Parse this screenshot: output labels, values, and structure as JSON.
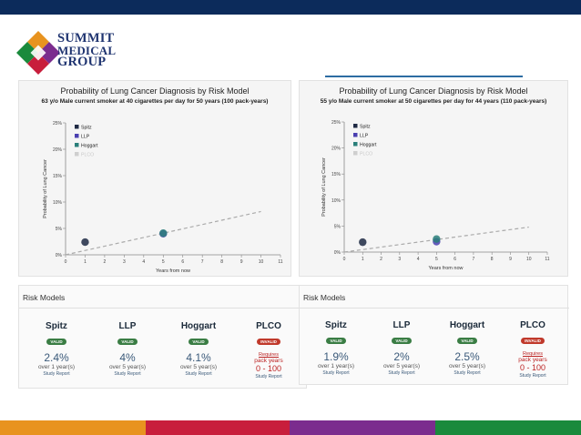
{
  "colors": {
    "top_bar": "#0c2b5b",
    "bottom_bar": [
      "#e8931f",
      "#c81e3c",
      "#7b2c8e",
      "#1a8a3c"
    ],
    "spitz": "#1f2a44",
    "llp": "#4a3fb0",
    "hoggart": "#2a7f7a",
    "plco": "#cfcfcf",
    "valid": "#3a7d44",
    "invalid": "#c0392b"
  },
  "logo": {
    "line1": "SUMMIT",
    "line2": "MEDICAL",
    "line3": "GROUP"
  },
  "chart_data": [
    {
      "type": "line",
      "title": "Probability of Lung Cancer Diagnosis by Risk Model",
      "subtitle": "63 y/o Male current smoker at 40 cigarettes per day for 50 years (100 pack-years)",
      "xlabel": "Years from now",
      "ylabel": "Probability of Lung Cancer",
      "xlim": [
        0,
        11
      ],
      "ylim": [
        0,
        25
      ],
      "xticks": [
        "0",
        "1",
        "2",
        "3",
        "4",
        "5",
        "6",
        "7",
        "8",
        "9",
        "10",
        "11"
      ],
      "yticks": [
        "0%",
        "5%",
        "10%",
        "15%",
        "20%",
        "25%"
      ],
      "legend": [
        "Spitz",
        "LLP",
        "Hoggart",
        "PLCO"
      ],
      "trend_line": [
        [
          0,
          0
        ],
        [
          10,
          8.2
        ]
      ],
      "points": [
        {
          "series": "Spitz",
          "x": 1,
          "y": 2.4
        },
        {
          "series": "LLP",
          "x": 5,
          "y": 4.0
        },
        {
          "series": "Hoggart",
          "x": 5,
          "y": 4.1
        }
      ]
    },
    {
      "type": "line",
      "title": "Probability of Lung Cancer Diagnosis by Risk Model",
      "subtitle": "55 y/o Male current smoker at 50 cigarettes per day for 44 years (110 pack-years)",
      "xlabel": "Years from now",
      "ylabel": "Probability of Lung Cancer",
      "xlim": [
        0,
        11
      ],
      "ylim": [
        0,
        25
      ],
      "xticks": [
        "0",
        "1",
        "2",
        "3",
        "4",
        "5",
        "6",
        "7",
        "8",
        "9",
        "10",
        "11"
      ],
      "yticks": [
        "0%",
        "5%",
        "10%",
        "15%",
        "20%",
        "25%"
      ],
      "legend": [
        "Spitz",
        "LLP",
        "Hoggart",
        "PLCO"
      ],
      "trend_line": [
        [
          0,
          0
        ],
        [
          10,
          4.8
        ]
      ],
      "points": [
        {
          "series": "Spitz",
          "x": 1,
          "y": 1.9
        },
        {
          "series": "LLP",
          "x": 5,
          "y": 2.0
        },
        {
          "series": "Hoggart",
          "x": 5,
          "y": 2.5
        }
      ]
    }
  ],
  "risk_panels": [
    {
      "title": "Risk Models",
      "models": [
        {
          "name": "Spitz",
          "status": "VALID",
          "value": "2.4%",
          "period": "over 1 year(s)",
          "link": "Study Report"
        },
        {
          "name": "LLP",
          "status": "VALID",
          "value": "4%",
          "period": "over 5 year(s)",
          "link": "Study Report"
        },
        {
          "name": "Hoggart",
          "status": "VALID",
          "value": "4.1%",
          "period": "over 5 year(s)",
          "link": "Study Report"
        },
        {
          "name": "PLCO",
          "status": "INVALID",
          "requires": "Requires",
          "pack": "pack years",
          "range": "0 - 100",
          "link": "Study Report"
        }
      ]
    },
    {
      "title": "Risk Models",
      "models": [
        {
          "name": "Spitz",
          "status": "VALID",
          "value": "1.9%",
          "period": "over 1 year(s)",
          "link": "Study Report"
        },
        {
          "name": "LLP",
          "status": "VALID",
          "value": "2%",
          "period": "over 5 year(s)",
          "link": "Study Report"
        },
        {
          "name": "Hoggart",
          "status": "VALID",
          "value": "2.5%",
          "period": "over 5 year(s)",
          "link": "Study Report"
        },
        {
          "name": "PLCO",
          "status": "INVALID",
          "requires": "Requires",
          "pack": "pack years",
          "range": "0 - 100",
          "link": "Study Report"
        }
      ]
    }
  ]
}
